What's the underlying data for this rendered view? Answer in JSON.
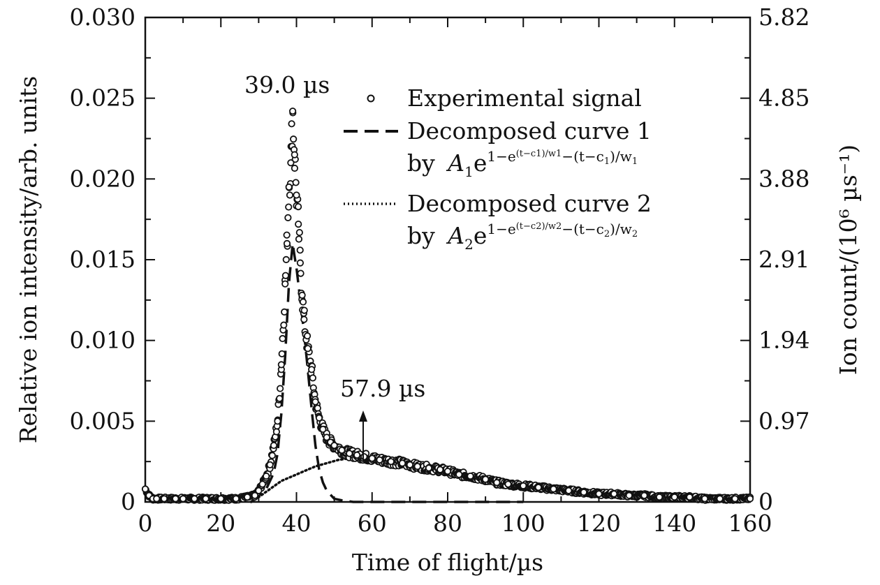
{
  "chart_data": {
    "type": "scatter",
    "xlabel": "Time of flight/µs",
    "ylabel_left": "Relative ion intensity/arb. units",
    "ylabel_right": "Ion count/(10⁶ µs⁻¹)",
    "xlim": [
      0,
      160
    ],
    "ylim_left": [
      0,
      0.03
    ],
    "ylim_right": [
      0,
      5.82
    ],
    "x_ticks": [
      "0",
      "20",
      "40",
      "60",
      "80",
      "100",
      "120",
      "140",
      "160"
    ],
    "y_ticks_left": [
      "0",
      "0.005",
      "0.010",
      "0.015",
      "0.020",
      "0.025",
      "0.030"
    ],
    "y_ticks_right": [
      "0",
      "0.97",
      "1.94",
      "2.91",
      "3.88",
      "4.85",
      "5.82"
    ],
    "grid": false,
    "legend_position": "top-right",
    "annotations": [
      {
        "text": "39.0 µs",
        "x": 39.0
      },
      {
        "text": "57.9 µs",
        "x": 57.9
      }
    ],
    "series": [
      {
        "name": "Experimental signal",
        "style": "open-circle",
        "x": [
          0,
          1,
          2,
          3,
          5,
          8,
          10,
          13,
          16,
          20,
          24,
          27,
          29,
          30,
          31,
          32,
          33,
          34,
          35,
          36,
          37,
          37.5,
          38,
          38.5,
          39,
          39.5,
          40,
          40.5,
          41,
          41.5,
          42,
          43,
          44,
          45,
          46,
          47,
          48,
          49,
          50,
          52,
          54,
          56,
          57.9,
          60,
          62,
          65,
          68,
          70,
          72,
          75,
          78,
          80,
          83,
          86,
          90,
          93,
          96,
          100,
          104,
          108,
          112,
          116,
          120,
          124,
          128,
          132,
          136,
          140,
          144,
          148,
          152,
          156,
          160
        ],
        "y": [
          0.0008,
          0.0004,
          0.0002,
          0.0002,
          0.0002,
          0.0002,
          0.0002,
          0.0002,
          0.0002,
          0.0002,
          0.0002,
          0.0003,
          0.0004,
          0.0007,
          0.0011,
          0.0016,
          0.0023,
          0.0035,
          0.005,
          0.0085,
          0.0135,
          0.016,
          0.0195,
          0.021,
          0.0242,
          0.0215,
          0.019,
          0.0172,
          0.0148,
          0.0128,
          0.0113,
          0.0095,
          0.0082,
          0.0062,
          0.0052,
          0.0045,
          0.004,
          0.0037,
          0.0035,
          0.0032,
          0.003,
          0.0029,
          0.0028,
          0.0027,
          0.0026,
          0.0025,
          0.0024,
          0.0023,
          0.0022,
          0.0021,
          0.002,
          0.0019,
          0.0017,
          0.0016,
          0.0014,
          0.0012,
          0.0011,
          0.001,
          0.0009,
          0.0008,
          0.0007,
          0.0006,
          0.0005,
          0.0005,
          0.0004,
          0.0004,
          0.0003,
          0.0003,
          0.0003,
          0.0002,
          0.0002,
          0.0002,
          0.0002
        ]
      },
      {
        "name": "Decomposed curve 1",
        "name_extra": "by",
        "style": "dashed",
        "x": [
          28,
          32,
          34,
          35,
          36,
          37,
          38,
          38.5,
          39,
          39.5,
          40,
          41,
          42,
          43,
          44,
          45,
          46,
          47,
          48,
          50,
          52,
          55,
          60,
          70,
          80,
          90,
          100
        ],
        "y": [
          0.0,
          0.0008,
          0.0018,
          0.003,
          0.0055,
          0.009,
          0.0135,
          0.0148,
          0.016,
          0.0152,
          0.0145,
          0.0125,
          0.0105,
          0.0082,
          0.0058,
          0.0035,
          0.002,
          0.0012,
          0.0007,
          0.0002,
          0.0001,
          0.0,
          0.0,
          0.0,
          0.0,
          0.0,
          0.0
        ]
      },
      {
        "name": "Decomposed curve 2",
        "name_extra": "by",
        "style": "dotted",
        "x": [
          28,
          30,
          33,
          36,
          39,
          42,
          45,
          48,
          51,
          54,
          57.9,
          62,
          66,
          70,
          75,
          80,
          85,
          90,
          95,
          100,
          110,
          120,
          130,
          140,
          150,
          160
        ],
        "y": [
          0.0,
          0.0003,
          0.0008,
          0.0013,
          0.0016,
          0.0019,
          0.0022,
          0.0024,
          0.0026,
          0.0027,
          0.0027,
          0.0026,
          0.0025,
          0.0024,
          0.0022,
          0.002,
          0.0017,
          0.0015,
          0.0013,
          0.0011,
          0.0008,
          0.0006,
          0.0004,
          0.0003,
          0.0002,
          0.0001
        ]
      }
    ]
  }
}
